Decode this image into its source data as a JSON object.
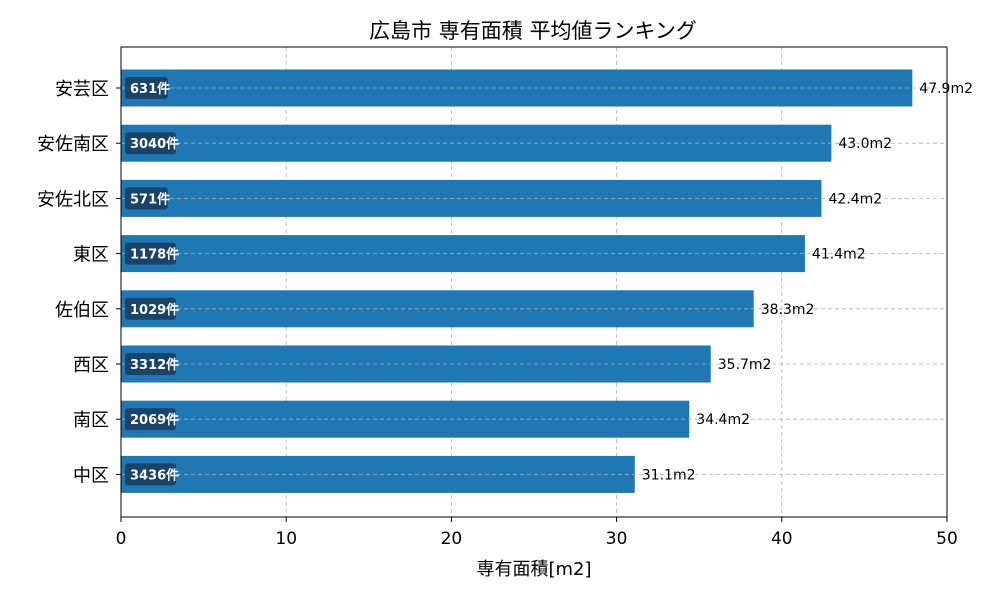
{
  "chart_data": {
    "type": "bar",
    "orientation": "horizontal",
    "title": "広島市 専有面積 平均値ランキング",
    "xlabel": "専有面積[m2]",
    "ylabel": "",
    "xlim": [
      0,
      50
    ],
    "xticks": [
      0,
      10,
      20,
      30,
      40,
      50
    ],
    "grid": true,
    "categories": [
      "安芸区",
      "安佐南区",
      "安佐北区",
      "東区",
      "佐伯区",
      "西区",
      "南区",
      "中区"
    ],
    "values": [
      47.9,
      43.0,
      42.4,
      41.4,
      38.3,
      35.7,
      34.4,
      31.1
    ],
    "value_labels": [
      "47.9m2",
      "43.0m2",
      "42.4m2",
      "41.4m2",
      "38.3m2",
      "35.7m2",
      "34.4m2",
      "31.1m2"
    ],
    "counts": [
      "631件",
      "3040件",
      "571件",
      "1178件",
      "1029件",
      "3312件",
      "2069件",
      "3436件"
    ],
    "bar_color": "#1f77b4",
    "count_badge_color": "#1a3a5c"
  }
}
